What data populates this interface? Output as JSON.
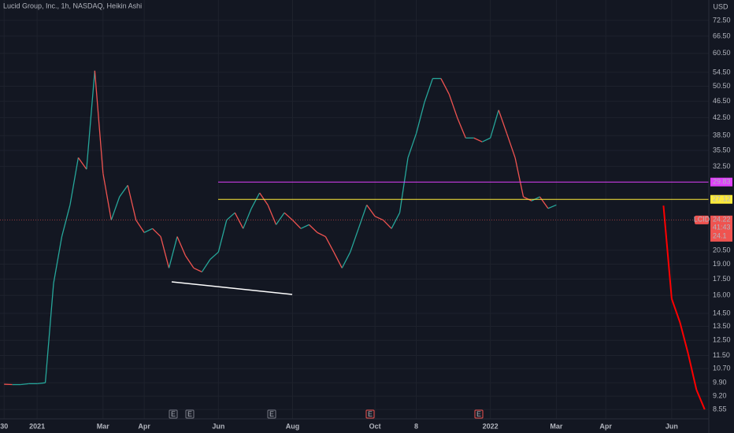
{
  "chart_data": {
    "type": "line",
    "title": "Lucid Group, Inc., 1h, NASDAQ, Heikin Ashi",
    "currency": "USD",
    "log_scale": true,
    "grid": true,
    "categories": [
      "30",
      null,
      null,
      null,
      "2021",
      null,
      null,
      null,
      null,
      null,
      null,
      null,
      "Mar",
      null,
      null,
      null,
      null,
      "Apr",
      null,
      null,
      null,
      null,
      null,
      null,
      null,
      null,
      "Jun",
      null,
      null,
      null,
      null,
      null,
      null,
      null,
      null,
      "Aug",
      null,
      null,
      null,
      null,
      null,
      null,
      null,
      null,
      null,
      "Oct",
      null,
      null,
      null,
      null,
      "8",
      null,
      null,
      null,
      null,
      null,
      null,
      null,
      null,
      "2022",
      null,
      null,
      null,
      null,
      null,
      null,
      null,
      "Mar",
      null,
      null,
      null,
      null,
      null,
      "Apr",
      null,
      null,
      null,
      null,
      null,
      null,
      null,
      "Jun",
      null,
      null,
      null,
      null
    ],
    "series": [
      {
        "name": "LCID",
        "color": "#26a69a",
        "down_color": "#ef5350",
        "values": [
          9.82,
          9.8,
          9.8,
          9.85,
          9.85,
          9.9,
          17.1,
          22.1,
          26.3,
          34.1,
          32.0,
          55.0,
          31.3,
          24.2,
          27.5,
          29.3,
          24.2,
          22.6,
          23.1,
          22.1,
          18.6,
          22.1,
          19.9,
          18.6,
          18.2,
          19.5,
          20.3,
          24.2,
          25.2,
          23.1,
          25.8,
          28.1,
          26.3,
          23.6,
          25.2,
          24.2,
          23.1,
          23.6,
          22.6,
          22.1,
          20.3,
          18.6,
          20.3,
          23.1,
          26.3,
          24.7,
          24.2,
          23.1,
          25.2,
          34.1,
          38.9,
          46.2,
          52.7,
          52.7,
          48.3,
          42.4,
          38.0,
          38.0,
          37.2,
          38.0,
          44.3,
          38.9,
          34.1,
          27.5,
          26.9,
          27.5,
          25.8,
          26.3,
          null,
          null,
          null,
          null,
          null,
          null,
          null,
          null,
          null,
          null,
          null,
          null,
          null,
          null,
          null,
          null,
          null,
          null
        ]
      },
      {
        "name": "Projection",
        "color": "#ff0000",
        "values": [
          null,
          null,
          null,
          null,
          null,
          null,
          null,
          null,
          null,
          null,
          null,
          null,
          null,
          null,
          null,
          null,
          null,
          null,
          null,
          null,
          null,
          null,
          null,
          null,
          null,
          null,
          null,
          null,
          null,
          null,
          null,
          null,
          null,
          null,
          null,
          null,
          null,
          null,
          null,
          null,
          null,
          null,
          null,
          null,
          null,
          null,
          null,
          null,
          null,
          null,
          null,
          null,
          null,
          null,
          null,
          null,
          null,
          null,
          null,
          null,
          null,
          null,
          null,
          null,
          null,
          null,
          null,
          null,
          null,
          null,
          null,
          null,
          null,
          null,
          null,
          null,
          null,
          null,
          null,
          null,
          26.2,
          15.7,
          13.8,
          11.6,
          9.53,
          8.55
        ]
      }
    ],
    "ylim": [
      8.12,
      81.1
    ],
    "yticks": [
      {
        "value": 8.55,
        "label": "8.55"
      },
      {
        "value": 9.2,
        "label": "9.20"
      },
      {
        "value": 9.9,
        "label": "9.90"
      },
      {
        "value": 10.7,
        "label": "10.70"
      },
      {
        "value": 11.5,
        "label": "11.50"
      },
      {
        "value": 12.5,
        "label": "12.50"
      },
      {
        "value": 13.5,
        "label": "13.50"
      },
      {
        "value": 14.5,
        "label": "14.50"
      },
      {
        "value": 16,
        "label": "16.00"
      },
      {
        "value": 17.5,
        "label": "17.50"
      },
      {
        "value": 19,
        "label": "19.00"
      },
      {
        "value": 20.5,
        "label": "20.50"
      },
      {
        "value": 32.5,
        "label": "32.50"
      },
      {
        "value": 35.5,
        "label": "35.50"
      },
      {
        "value": 38.5,
        "label": "38.50"
      },
      {
        "value": 42.5,
        "label": "42.50"
      },
      {
        "value": 46.5,
        "label": "46.50"
      },
      {
        "value": 50.5,
        "label": "50.50"
      },
      {
        "value": 54.5,
        "label": "54.50"
      },
      {
        "value": 60.5,
        "label": "60.50"
      },
      {
        "value": 66.5,
        "label": "66.50"
      },
      {
        "value": 72.5,
        "label": "72.50"
      }
    ],
    "hlines": [
      {
        "value": 29.83,
        "color": "#e040fb"
      },
      {
        "value": 27.12,
        "color": "#ffeb3b"
      }
    ],
    "price_line": {
      "symbol": "LCID",
      "value": 24.22,
      "countdown": "41:43",
      "prev_value": 24.1,
      "color": "#ef5350"
    },
    "events": [
      {
        "label": "E",
        "color": "#787b86"
      },
      {
        "label": "E",
        "color": "#787b86"
      },
      {
        "label": "E",
        "color": "#787b86"
      },
      {
        "label": "E",
        "color": "#ef5350"
      },
      {
        "label": "E",
        "color": "#ef5350"
      }
    ]
  }
}
